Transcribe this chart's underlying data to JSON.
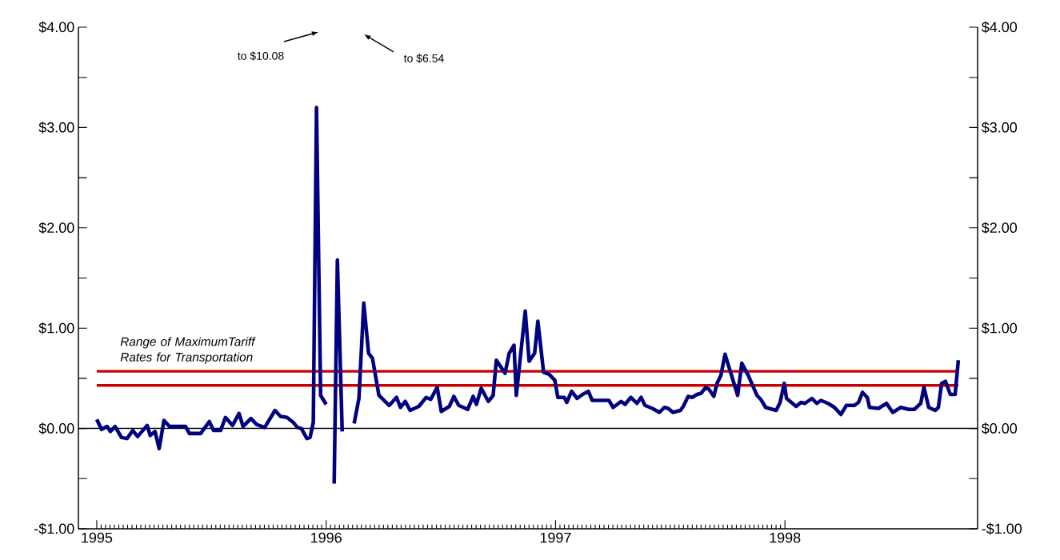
{
  "chart_data": {
    "type": "line",
    "x": [
      1995.0,
      1995.021,
      1995.045,
      1995.059,
      1995.08,
      1995.108,
      1995.132,
      1995.157,
      1995.178,
      1995.22,
      1995.233,
      1995.254,
      1995.272,
      1995.293,
      1995.317,
      1995.359,
      1995.387,
      1995.404,
      1995.453,
      1995.491,
      1995.509,
      1995.54,
      1995.561,
      1995.592,
      1995.62,
      1995.638,
      1995.672,
      1995.697,
      1995.732,
      1995.777,
      1995.801,
      1995.829,
      1995.857,
      1995.875,
      1995.892,
      1995.916,
      1995.93,
      1995.944,
      1995.958,
      1995.976,
      1996.0,
      1996.01,
      1996.035,
      1996.049,
      1996.07,
      1996.101,
      1996.122,
      1996.143,
      1996.164,
      1996.185,
      1996.202,
      1996.23,
      1996.275,
      1996.307,
      1996.324,
      1996.345,
      1996.366,
      1996.404,
      1996.436,
      1996.456,
      1996.484,
      1996.502,
      1996.537,
      1996.557,
      1996.578,
      1996.617,
      1996.641,
      1996.655,
      1996.676,
      1996.707,
      1996.728,
      1996.742,
      1996.78,
      1996.798,
      1996.819,
      1996.829,
      1996.868,
      1996.885,
      1996.909,
      1996.923,
      1996.948,
      1996.972,
      1996.997,
      1997.01,
      1997.038,
      1997.049,
      1997.07,
      1997.094,
      1997.118,
      1997.143,
      1997.16,
      1997.233,
      1997.251,
      1997.286,
      1997.303,
      1997.328,
      1997.355,
      1997.373,
      1997.39,
      1997.422,
      1997.453,
      1997.474,
      1997.491,
      1997.512,
      1997.544,
      1997.557,
      1997.578,
      1997.596,
      1997.617,
      1997.634,
      1997.655,
      1997.669,
      1997.69,
      1997.704,
      1997.721,
      1997.739,
      1997.794,
      1997.812,
      1997.84,
      1997.878,
      1997.895,
      1997.916,
      1997.962,
      1997.979,
      1997.997,
      1998.007,
      1998.049,
      1998.07,
      1998.087,
      1998.118,
      1998.139,
      1998.157,
      1998.188,
      1998.216,
      1998.244,
      1998.268,
      1998.303,
      1998.321,
      1998.338,
      1998.359,
      1998.369,
      1998.408,
      1998.443,
      1998.47,
      1998.505,
      1998.54,
      1998.564,
      1998.592,
      1998.606,
      1998.627,
      1998.655,
      1998.669,
      1998.683,
      1998.7,
      1998.721,
      1998.742,
      1998.756
    ],
    "series": [
      {
        "color": "#000080",
        "values": [
          0.09,
          -0.01,
          0.02,
          -0.03,
          0.02,
          -0.09,
          -0.1,
          -0.02,
          -0.08,
          0.03,
          -0.07,
          -0.03,
          -0.2,
          0.08,
          0.02,
          0.02,
          0.02,
          -0.05,
          -0.05,
          0.07,
          -0.02,
          -0.02,
          0.11,
          0.03,
          0.15,
          0.02,
          0.1,
          0.04,
          0.01,
          0.18,
          0.12,
          0.11,
          0.06,
          0.01,
          0,
          -0.1,
          -0.09,
          0.06,
          3.2,
          0.33,
          0.24,
          null,
          -0.55,
          1.68,
          -0.03,
          null,
          0.05,
          0.3,
          1.25,
          0.75,
          0.7,
          0.33,
          0.23,
          0.31,
          0.21,
          0.27,
          0.18,
          0.22,
          0.31,
          0.29,
          0.41,
          0.17,
          0.22,
          0.32,
          0.23,
          0.19,
          0.32,
          0.24,
          0.4,
          0.27,
          0.33,
          0.68,
          0.55,
          0.75,
          0.83,
          0.33,
          1.17,
          0.67,
          0.75,
          1.07,
          0.56,
          0.54,
          0.48,
          0.31,
          0.31,
          0.26,
          0.37,
          0.3,
          0.34,
          0.37,
          0.28,
          0.28,
          0.21,
          0.27,
          0.24,
          0.31,
          0.25,
          0.31,
          0.23,
          0.2,
          0.16,
          0.21,
          0.2,
          0.16,
          0.18,
          0.22,
          0.32,
          0.31,
          0.34,
          0.35,
          0.41,
          0.39,
          0.32,
          0.45,
          0.53,
          0.74,
          0.33,
          0.65,
          0.53,
          0.33,
          0.29,
          0.21,
          0.18,
          0.26,
          0.45,
          0.3,
          0.22,
          0.26,
          0.25,
          0.3,
          0.25,
          0.28,
          0.25,
          0.21,
          0.14,
          0.23,
          0.23,
          0.26,
          0.36,
          0.31,
          0.21,
          0.2,
          0.25,
          0.16,
          0.21,
          0.19,
          0.19,
          0.25,
          0.41,
          0.21,
          0.18,
          0.21,
          0.45,
          0.47,
          0.34,
          0.34,
          0.68
        ]
      }
    ],
    "xlim": [
      1994.92,
      1998.84
    ],
    "xticks": [
      1995,
      1996,
      1997,
      1998
    ],
    "ylim": [
      -1,
      4
    ],
    "yticks": [
      {
        "value": -1,
        "label": "-$1.00"
      },
      {
        "value": -0.5,
        "label": null
      },
      {
        "value": 0,
        "label": "$0.00"
      },
      {
        "value": 0.5,
        "label": null
      },
      {
        "value": 1,
        "label": "$1.00"
      },
      {
        "value": 1.5,
        "label": null
      },
      {
        "value": 2,
        "label": "$2.00"
      },
      {
        "value": 2.5,
        "label": null
      },
      {
        "value": 3,
        "label": "$3.00"
      },
      {
        "value": 3.5,
        "label": null
      },
      {
        "value": 4,
        "label": "$4.00"
      }
    ],
    "y2lim": [
      -1,
      4
    ],
    "y2ticks": [
      {
        "value": -1,
        "label": "-$1.00"
      },
      {
        "value": -0.5,
        "label": null
      },
      {
        "value": 0,
        "label": "$0.00"
      },
      {
        "value": 0.5,
        "label": null
      },
      {
        "value": 1,
        "label": "$1.00"
      },
      {
        "value": 1.5,
        "label": null
      },
      {
        "value": 2,
        "label": "$2.00"
      },
      {
        "value": 2.5,
        "label": null
      },
      {
        "value": 3,
        "label": "$3.00"
      },
      {
        "value": 3.5,
        "label": null
      },
      {
        "value": 4,
        "label": "$4.00"
      }
    ],
    "ref_lines": [
      {
        "axis": "y",
        "value": 0,
        "color": "#000000"
      },
      {
        "axis": "y",
        "value": 0.57,
        "color": "#cc0000"
      },
      {
        "axis": "y",
        "value": 0.43,
        "color": "#cc0000"
      }
    ],
    "annotations": [
      "to $10.08",
      "to $6.54",
      "Range of MaximumTariff Rates for Transportation"
    ],
    "marker": "none",
    "line_style": "solid"
  }
}
